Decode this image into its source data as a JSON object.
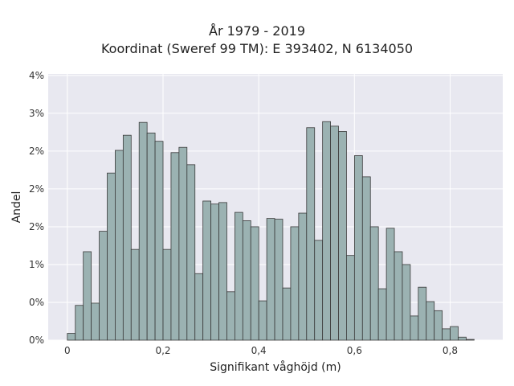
{
  "chart_data": {
    "type": "bar",
    "title": "År 1979 - 2019",
    "subtitle": "Koordinat (Sweref 99 TM): E 393402, N 6134050",
    "xlabel": "Signifikant våghöjd (m)",
    "ylabel": "Andel",
    "x_ticks": [
      0,
      0.2,
      0.4,
      0.6,
      0.8
    ],
    "x_tick_labels": [
      "0",
      "0,2",
      "0,4",
      "0,6",
      "0,8"
    ],
    "y_ticks": [
      0,
      0.005,
      0.01,
      0.015,
      0.02,
      0.025,
      0.03,
      0.035
    ],
    "y_tick_labels": [
      "0%",
      "0%",
      "1%",
      "2%",
      "2%",
      "2%",
      "3%",
      "4%"
    ],
    "xlim": [
      -0.04,
      0.91
    ],
    "ylim": [
      0,
      0.0352
    ],
    "bin_width": 0.01667,
    "bin_start": 0,
    "values": [
      0.0009,
      0.0046,
      0.0117,
      0.0049,
      0.0144,
      0.0221,
      0.0251,
      0.0271,
      0.012,
      0.0288,
      0.0274,
      0.0263,
      0.012,
      0.0248,
      0.0255,
      0.0232,
      0.0088,
      0.0184,
      0.018,
      0.0182,
      0.0064,
      0.0169,
      0.0158,
      0.015,
      0.0052,
      0.0161,
      0.016,
      0.0069,
      0.015,
      0.0168,
      0.0281,
      0.0132,
      0.0289,
      0.0283,
      0.0276,
      0.0112,
      0.0244,
      0.0216,
      0.015,
      0.0068,
      0.0148,
      0.0117,
      0.01,
      0.0032,
      0.007,
      0.0051,
      0.0039,
      0.0015,
      0.0018,
      0.0004,
      0.0001
    ],
    "bar_fill": "#9bb2b2",
    "bar_edge": "#3a3a3a",
    "plot_background": "#e8e8f0",
    "grid": true,
    "grid_color": "#ffffff"
  }
}
